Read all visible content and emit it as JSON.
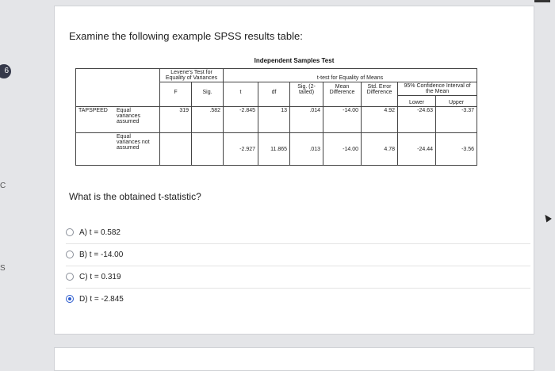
{
  "side": {
    "badge": "6",
    "letter_c": "C",
    "letter_s": "S"
  },
  "prompt": "Examine the following example SPSS results table:",
  "spss": {
    "title": "Independent Samples Test",
    "levene_header": "Levene's Test for Equality of Variances",
    "ttest_header": "t-test for Equality of Means",
    "ci_header": "95% Confidence Interval of the Mean",
    "columns": {
      "f": "F",
      "sig": "Sig.",
      "t": "t",
      "df": "df",
      "sig2": "Sig. (2-tailed)",
      "mean_diff": "Mean Difference",
      "se_diff": "Std. Error Difference",
      "lower": "Lower",
      "upper": "Upper"
    },
    "variable": "TAPSPEED",
    "rows": [
      {
        "label": "Equal variances assumed",
        "f": "319",
        "sig": ".582",
        "t": "-2.845",
        "df": "13",
        "sig2": ".014",
        "mean_diff": "-14.00",
        "se_diff": "4.92",
        "lower": "-24.63",
        "upper": "-3.37"
      },
      {
        "label": "Equal variances not assumed",
        "f": "",
        "sig": "",
        "t": "-2.927",
        "df": "11.865",
        "sig2": ".013",
        "mean_diff": "-14.00",
        "se_diff": "4.78",
        "lower": "-24.44",
        "upper": "-3.56"
      }
    ]
  },
  "question": "What is the obtained t-statistic?",
  "options": [
    {
      "label": "A) t = 0.582",
      "selected": false
    },
    {
      "label": "B) t = -14.00",
      "selected": false
    },
    {
      "label": "C) t = 0.319",
      "selected": false
    },
    {
      "label": "D) t = -2.845",
      "selected": true
    }
  ],
  "colors": {
    "accent": "#2c5ccf",
    "badge": "#35394a",
    "background": "#e4e5e8"
  }
}
